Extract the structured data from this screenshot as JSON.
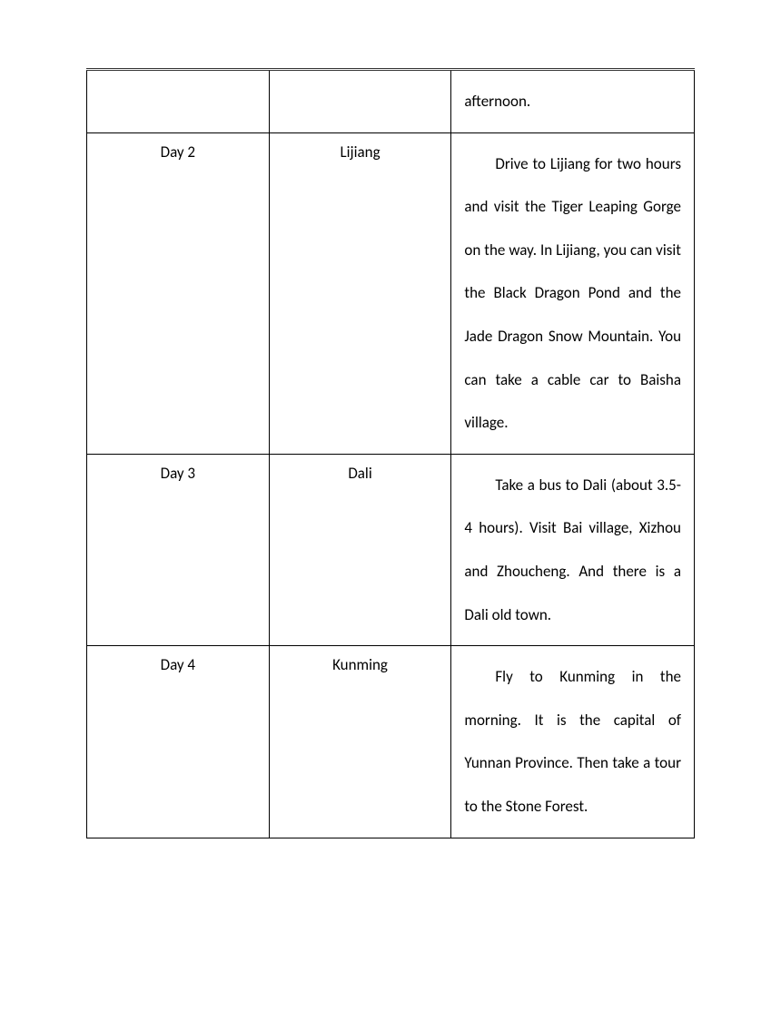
{
  "table": {
    "font_family": "Calibri, Arial, sans-serif",
    "font_size": 17,
    "text_color": "#000000",
    "border_color": "#000000",
    "top_border_style": "double",
    "line_height": 2.8,
    "columns": [
      "day",
      "place",
      "description"
    ],
    "column_widths": [
      "30%",
      "30%",
      "40%"
    ],
    "rows": [
      {
        "day": "",
        "place": "",
        "description": "afternoon."
      },
      {
        "day": "Day 2",
        "place": "Lijiang",
        "description": "Drive to Lijiang for two hours and visit the Tiger Leaping Gorge on the way. In Lijiang, you can visit the Black Dragon Pond and the Jade Dragon Snow Mountain. You can take a cable car to Baisha village."
      },
      {
        "day": "Day 3",
        "place": "Dali",
        "description": "Take a bus to Dali (about 3.5-4 hours). Visit Bai village, Xizhou and Zhoucheng. And there is a Dali old town."
      },
      {
        "day": "Day 4",
        "place": "Kunming",
        "description": "Fly to Kunming in the morning. It is the capital of Yunnan Province. Then take a tour to the Stone Forest."
      }
    ]
  }
}
